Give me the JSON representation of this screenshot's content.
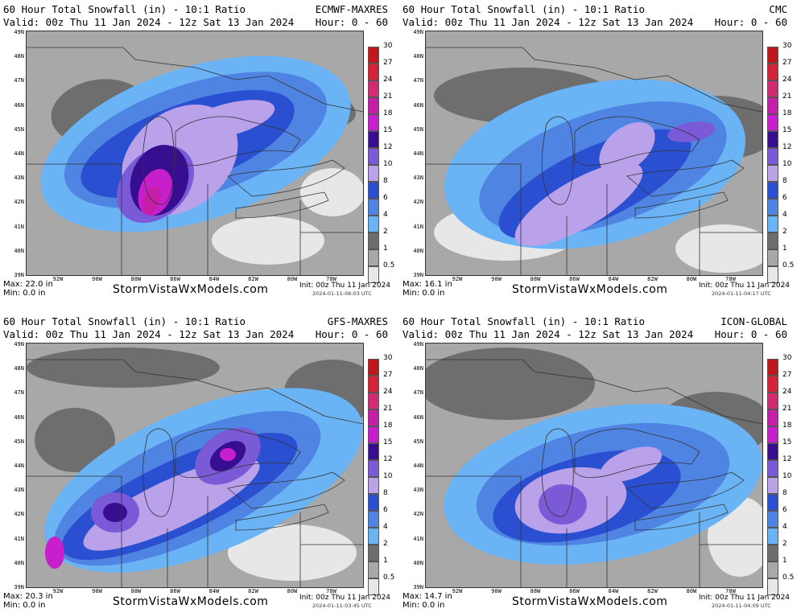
{
  "common": {
    "title": "60 Hour Total Snowfall (in) - 10:1 Ratio",
    "valid": "Valid: 00z Thu 11 Jan 2024 - 12z Sat 13 Jan 2024",
    "hours": "Hour: 0 - 60",
    "brand": "StormVistaWxModels.com",
    "init": "Init: 00z Thu 11 Jan 2024",
    "min": "Min: 0.0 in",
    "lat_labels": [
      "49N",
      "48N",
      "47N",
      "46N",
      "45N",
      "44N",
      "43N",
      "42N",
      "41N",
      "40N",
      "39N"
    ],
    "lon_labels": [
      "92W",
      "90W",
      "88W",
      "86W",
      "84W",
      "82W",
      "80W",
      "78W"
    ],
    "colorbar": {
      "labels": [
        "30",
        "27",
        "24",
        "21",
        "18",
        "15",
        "12",
        "10",
        "8",
        "6",
        "4",
        "2",
        "1",
        "0.5"
      ],
      "colors": [
        "#c0171f",
        "#d42238",
        "#d02c72",
        "#c41fa6",
        "#c81fcc",
        "#380e90",
        "#7a5ad6",
        "#b9a2ea",
        "#2a4fd0",
        "#4f84e3",
        "#6ab3f5",
        "#6e6e6e",
        "#a8a8a8",
        "#e7e7e7"
      ]
    }
  },
  "panels": [
    {
      "model": "ECMWF-MAXRES",
      "max": "Max: 22.0 in",
      "stamp": "2024-01-11-06:03 UTC"
    },
    {
      "model": "CMC",
      "max": "Max: 16.1 in",
      "stamp": "2024-01-11-04:17 UTC"
    },
    {
      "model": "GFS-MAXRES",
      "max": "Max: 20.3 in",
      "stamp": "2024-01-11-03:45 UTC"
    },
    {
      "model": "ICON-GLOBAL",
      "max": "Max: 14.7 in",
      "stamp": "2024-01-11-04:09 UTC"
    }
  ]
}
